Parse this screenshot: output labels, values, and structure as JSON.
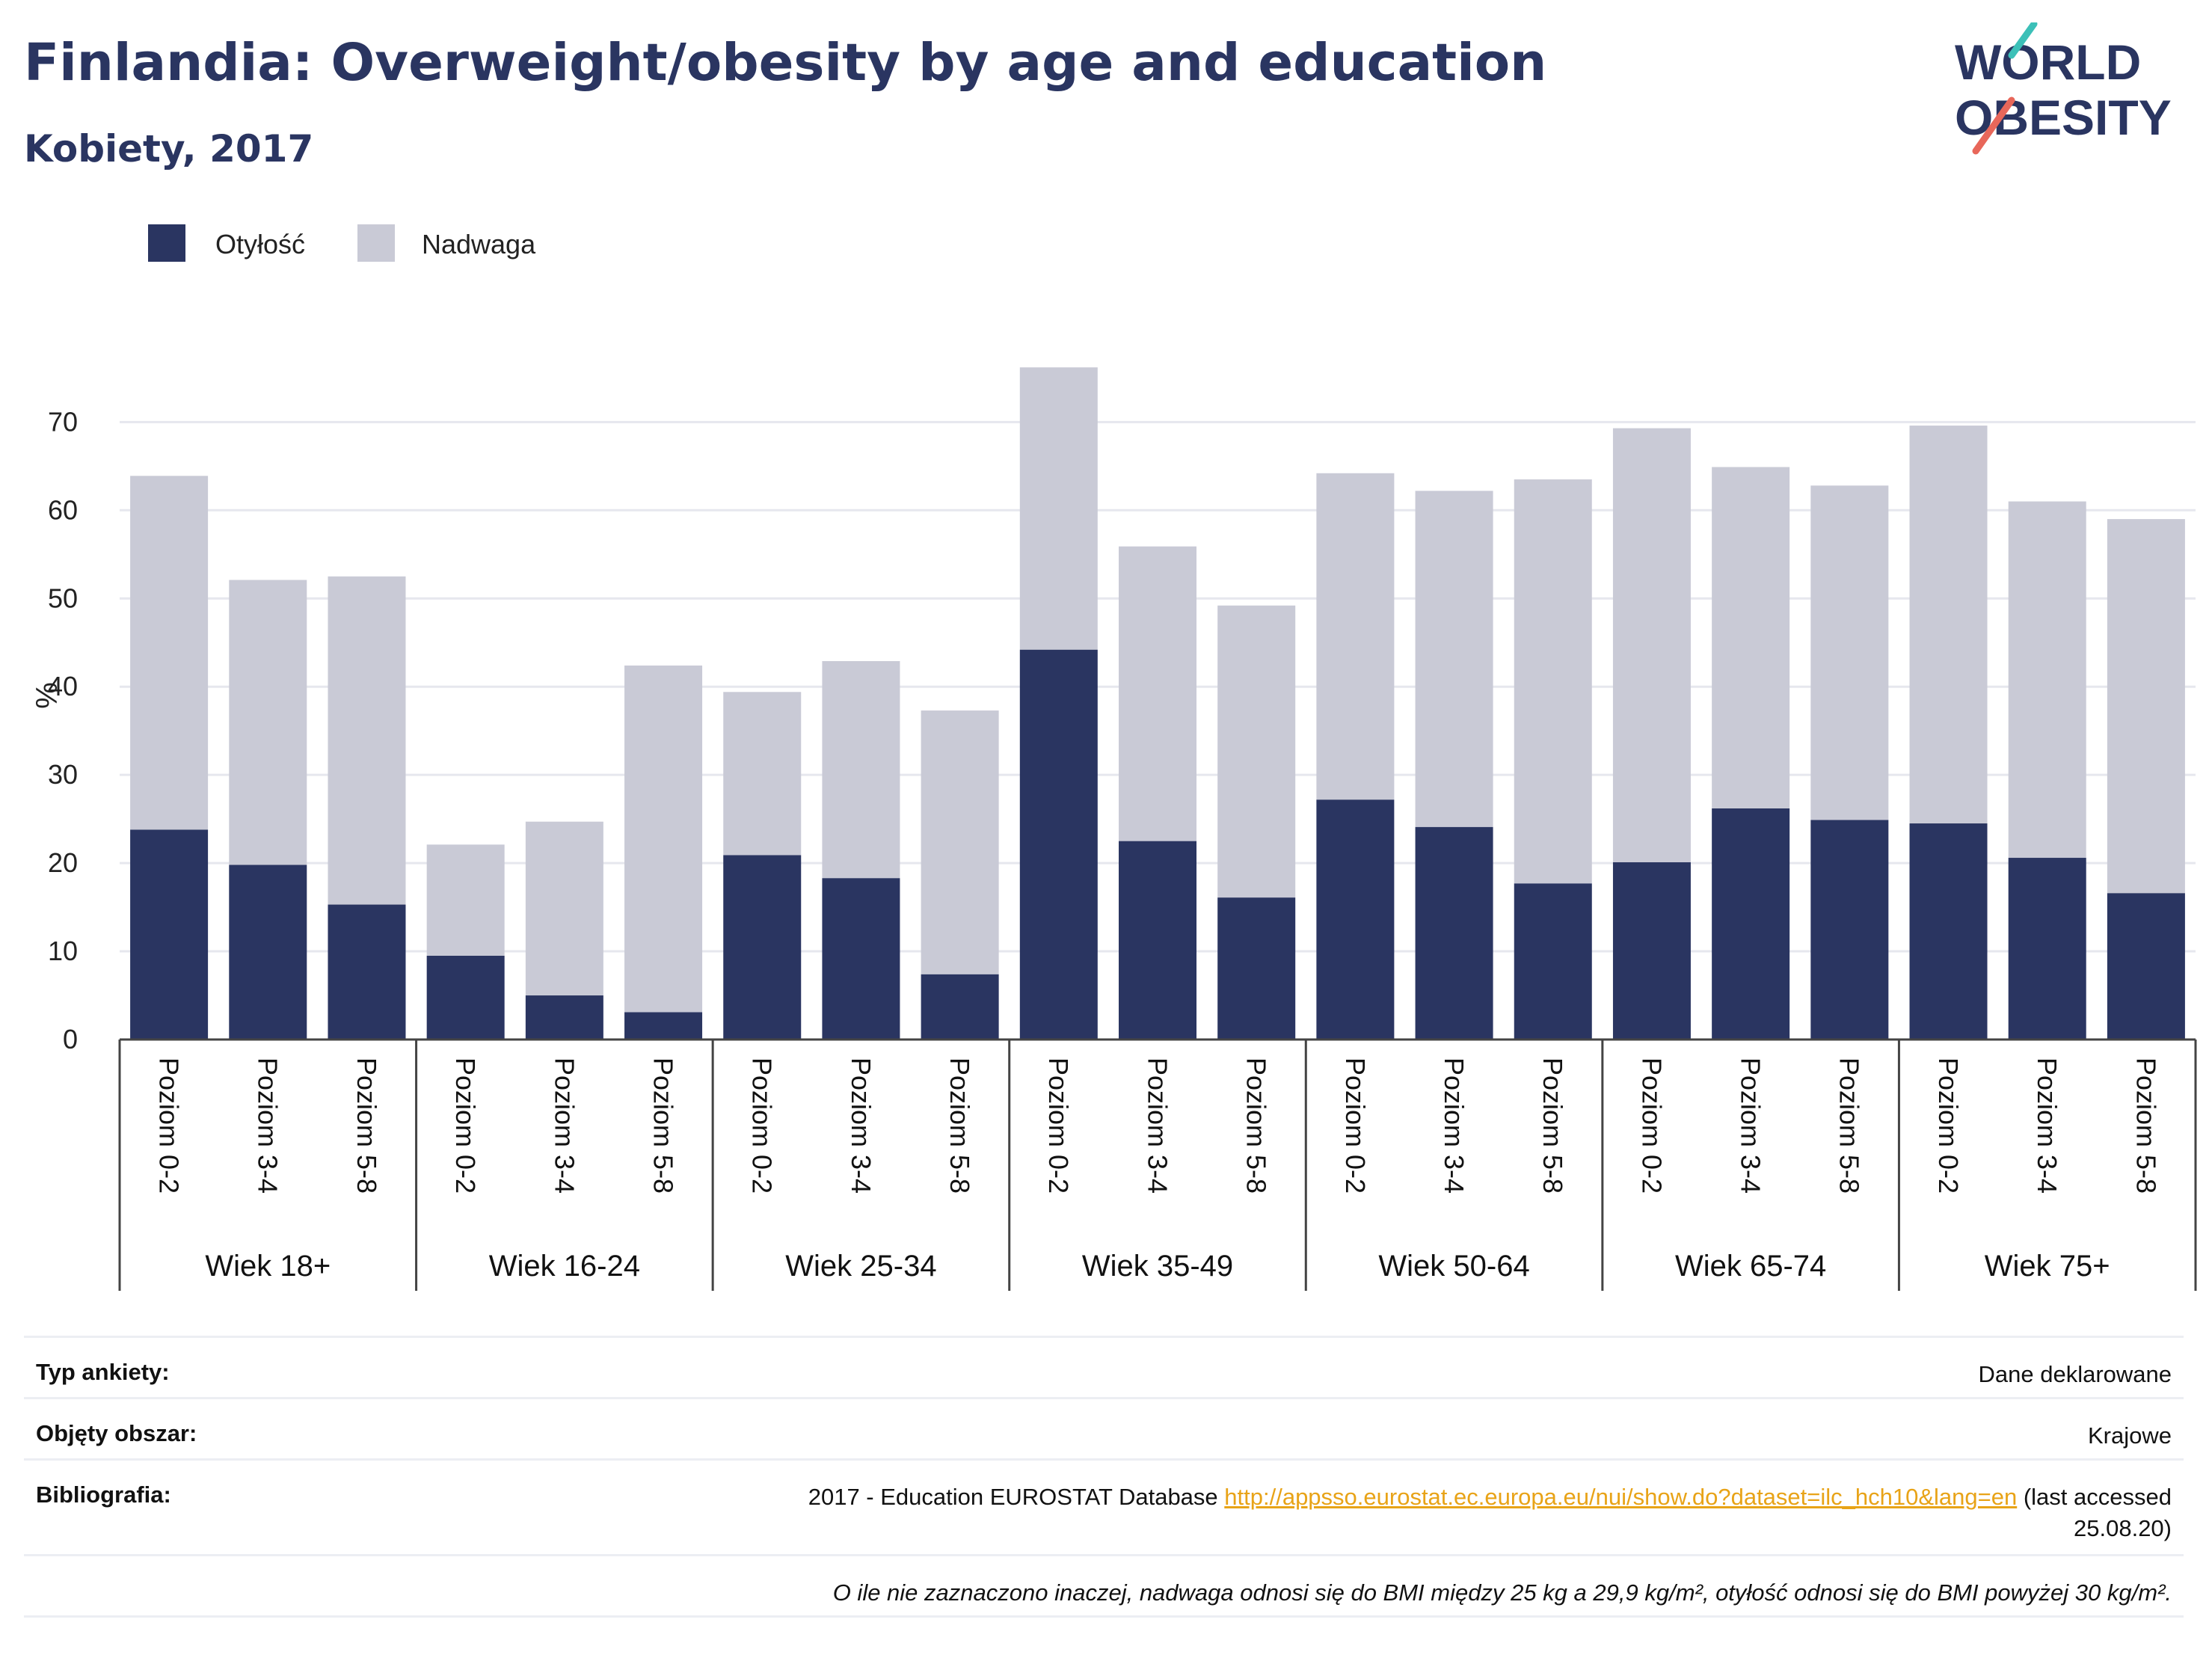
{
  "header": {
    "title": "Finlandia: Overweight/obesity by age and education",
    "subtitle": "Kobiety, 2017"
  },
  "logo": {
    "line1": "WORLD",
    "line2": "OBESITY"
  },
  "legend": [
    {
      "label": "Otyłość",
      "color": "#2a3561"
    },
    {
      "label": "Nadwaga",
      "color": "#c9cad6"
    }
  ],
  "chart_data": {
    "type": "bar",
    "stacked": true,
    "ylabel": "%",
    "ylim": [
      0,
      78
    ],
    "yticks": [
      0,
      10,
      20,
      30,
      40,
      50,
      60,
      70
    ],
    "grid": true,
    "legend_position": "top-left",
    "groups": [
      {
        "name": "Wiek 18+",
        "categories": [
          "Poziom 0-2",
          "Poziom 3-4",
          "Poziom 5-8"
        ]
      },
      {
        "name": "Wiek 16-24",
        "categories": [
          "Poziom 0-2",
          "Poziom 3-4",
          "Poziom 5-8"
        ]
      },
      {
        "name": "Wiek 25-34",
        "categories": [
          "Poziom 0-2",
          "Poziom 3-4",
          "Poziom 5-8"
        ]
      },
      {
        "name": "Wiek 35-49",
        "categories": [
          "Poziom 0-2",
          "Poziom 3-4",
          "Poziom 5-8"
        ]
      },
      {
        "name": "Wiek 50-64",
        "categories": [
          "Poziom 0-2",
          "Poziom 3-4",
          "Poziom 5-8"
        ]
      },
      {
        "name": "Wiek 65-74",
        "categories": [
          "Poziom 0-2",
          "Poziom 3-4",
          "Poziom 5-8"
        ]
      },
      {
        "name": "Wiek 75+",
        "categories": [
          "Poziom 0-2",
          "Poziom 3-4",
          "Poziom 5-8"
        ]
      }
    ],
    "series": [
      {
        "name": "Otyłość",
        "color": "#2a3561",
        "values": [
          23.8,
          19.8,
          15.3,
          9.5,
          5.0,
          3.1,
          20.9,
          18.3,
          7.4,
          44.2,
          22.5,
          16.1,
          27.2,
          24.1,
          17.7,
          20.1,
          26.2,
          24.9,
          24.5,
          20.6,
          16.6
        ]
      },
      {
        "name": "Nadwaga",
        "color": "#c9cad6",
        "values": [
          40.1,
          32.3,
          37.2,
          12.6,
          19.7,
          39.3,
          18.5,
          24.6,
          29.9,
          32.0,
          33.4,
          33.1,
          37.0,
          38.1,
          45.8,
          49.2,
          38.7,
          37.9,
          45.1,
          40.4,
          42.4
        ]
      }
    ]
  },
  "info": [
    {
      "key": "Typ ankiety:",
      "value": "Dane deklarowane"
    },
    {
      "key": "Objęty obszar:",
      "value": "Krajowe"
    },
    {
      "key": "Bibliografia:",
      "value_prefix": "2017 - Education EUROSTAT Database ",
      "link": "http://appsso.eurostat.ec.europa.eu/nui/show.do?dataset=ilc_hch10&lang=en",
      "value_suffix_1": " (last accessed",
      "value_suffix_2": "25.08.20)"
    }
  ],
  "note": "O ile nie zaznaczono inaczej, nadwaga odnosi się do BMI między 25 kg a 29,9 kg/m², otyłość odnosi się do BMI powyżej 30 kg/m²."
}
